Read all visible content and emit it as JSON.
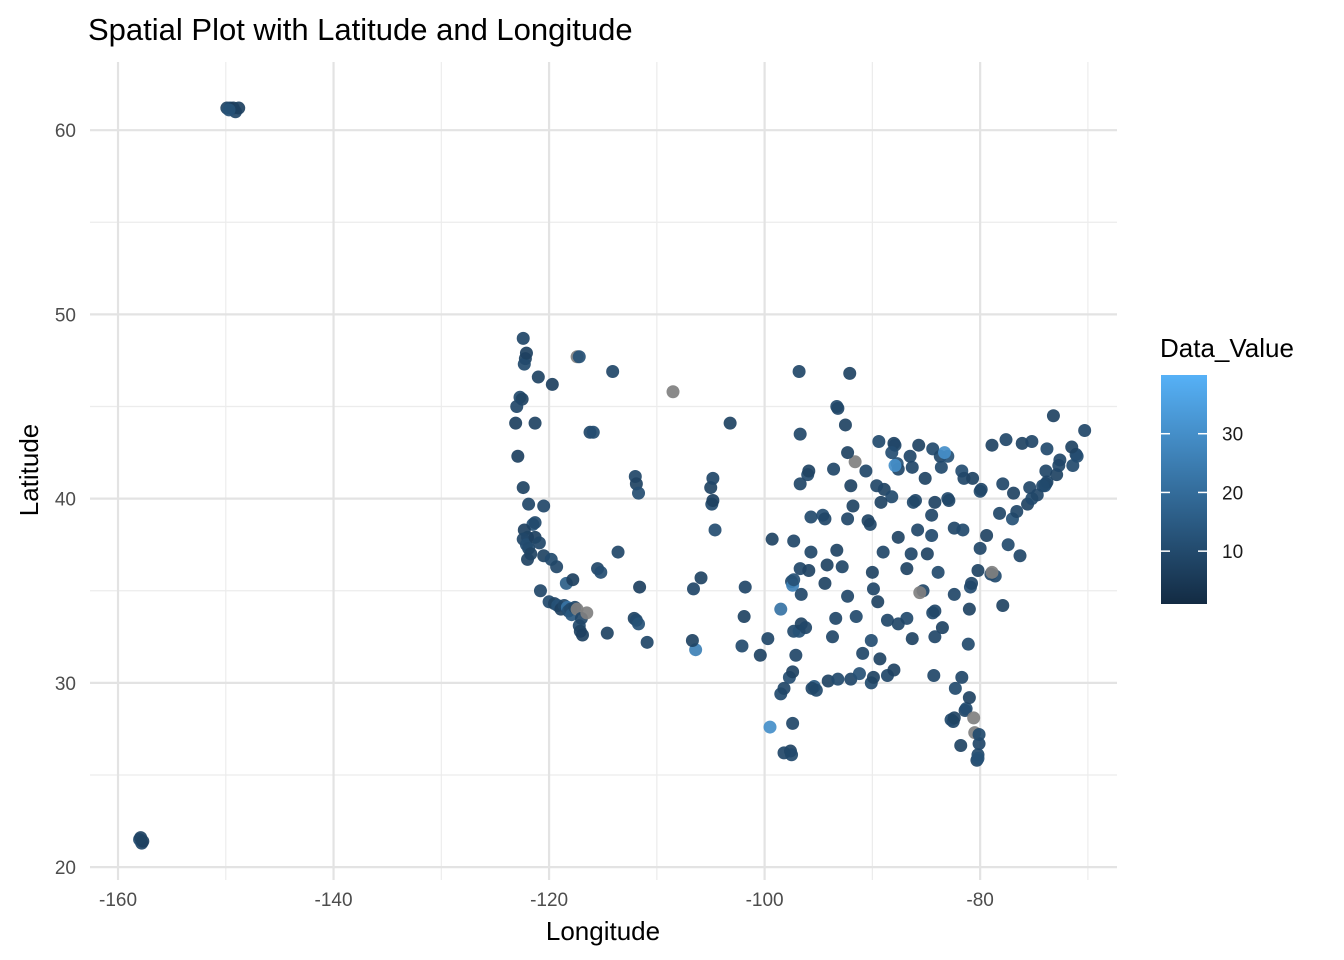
{
  "chart_data": {
    "type": "scatter",
    "title": "Spatial Plot with Latitude and Longitude",
    "xlabel": "Longitude",
    "ylabel": "Latitude",
    "xlim": [
      -162.6,
      -67.3
    ],
    "ylim": [
      19.3,
      63.7
    ],
    "x_ticks": [
      -160,
      -140,
      -120,
      -100,
      -80
    ],
    "y_ticks": [
      20,
      30,
      40,
      50,
      60
    ],
    "x_tick_labels": [
      "-160",
      "-140",
      "-120",
      "-100",
      "-80"
    ],
    "y_tick_labels": [
      "20",
      "30",
      "40",
      "50",
      "60"
    ],
    "grid": true,
    "legend": {
      "title": "Data_Value",
      "position": "right",
      "range": [
        1,
        40
      ],
      "ticks": [
        10,
        20,
        30
      ],
      "tick_labels": [
        "10",
        "20",
        "30"
      ],
      "color_low": "#132B43",
      "color_high": "#56B1F7"
    },
    "na_color": "#808080",
    "points": [
      [
        -149.9,
        61.2,
        8
      ],
      [
        -149.6,
        61.2,
        10
      ],
      [
        -149.3,
        61.2,
        6
      ],
      [
        -149.1,
        61.0,
        9
      ],
      [
        -148.8,
        61.2,
        7
      ],
      [
        -149.7,
        61.1,
        12
      ],
      [
        -157.8,
        21.3,
        9
      ],
      [
        -158.0,
        21.5,
        11
      ],
      [
        -157.7,
        21.4,
        7
      ],
      [
        -157.9,
        21.6,
        8
      ],
      [
        -122.4,
        48.7,
        9
      ],
      [
        -122.2,
        47.6,
        8
      ],
      [
        -122.3,
        47.3,
        10
      ],
      [
        -122.1,
        47.9,
        7
      ],
      [
        -117.4,
        47.7,
        null
      ],
      [
        -117.2,
        47.7,
        12
      ],
      [
        -121.0,
        46.6,
        8
      ],
      [
        -119.7,
        46.2,
        7
      ],
      [
        -114.1,
        46.9,
        9
      ],
      [
        -108.5,
        45.8,
        null
      ],
      [
        -122.7,
        45.5,
        10
      ],
      [
        -122.5,
        45.4,
        8
      ],
      [
        -123.0,
        45.0,
        9
      ],
      [
        -123.1,
        44.1,
        7
      ],
      [
        -121.3,
        44.1,
        8
      ],
      [
        -116.2,
        43.6,
        9
      ],
      [
        -115.9,
        43.6,
        11
      ],
      [
        -103.2,
        44.1,
        8
      ],
      [
        -122.9,
        42.3,
        7
      ],
      [
        -122.4,
        40.6,
        8
      ],
      [
        -121.9,
        39.7,
        9
      ],
      [
        -121.5,
        38.6,
        12
      ],
      [
        -121.3,
        38.7,
        10
      ],
      [
        -120.5,
        39.6,
        9
      ],
      [
        -122.3,
        38.3,
        7
      ],
      [
        -122.0,
        37.9,
        8
      ],
      [
        -122.4,
        37.8,
        9
      ],
      [
        -122.1,
        37.5,
        11
      ],
      [
        -121.9,
        37.3,
        10
      ],
      [
        -121.7,
        37.0,
        8
      ],
      [
        -121.3,
        37.9,
        7
      ],
      [
        -120.9,
        37.6,
        9
      ],
      [
        -120.5,
        36.9,
        8
      ],
      [
        -119.8,
        36.7,
        10
      ],
      [
        -119.3,
        36.3,
        9
      ],
      [
        -122.0,
        36.7,
        8
      ],
      [
        -120.8,
        35.0,
        9
      ],
      [
        -120.0,
        34.4,
        10
      ],
      [
        -119.5,
        34.3,
        8
      ],
      [
        -119.2,
        34.2,
        12
      ],
      [
        -118.9,
        34.0,
        7
      ],
      [
        -118.6,
        34.2,
        9
      ],
      [
        -118.3,
        34.1,
        22
      ],
      [
        -118.2,
        33.9,
        11
      ],
      [
        -118.0,
        34.0,
        10
      ],
      [
        -117.9,
        33.7,
        14
      ],
      [
        -117.6,
        34.1,
        9
      ],
      [
        -117.4,
        34.0,
        null
      ],
      [
        -117.2,
        33.1,
        10
      ],
      [
        -117.1,
        32.8,
        8
      ],
      [
        -117.0,
        33.5,
        9
      ],
      [
        -116.9,
        32.6,
        7
      ],
      [
        -118.4,
        35.4,
        16
      ],
      [
        -117.8,
        35.6,
        7
      ],
      [
        -116.5,
        33.8,
        null
      ],
      [
        -115.5,
        36.2,
        9
      ],
      [
        -115.2,
        36.0,
        11
      ],
      [
        -114.6,
        32.7,
        8
      ],
      [
        -113.6,
        37.1,
        9
      ],
      [
        -112.1,
        33.5,
        8
      ],
      [
        -111.9,
        33.4,
        10
      ],
      [
        -111.7,
        33.2,
        12
      ],
      [
        -111.6,
        35.2,
        7
      ],
      [
        -110.9,
        32.2,
        9
      ],
      [
        -112.0,
        41.2,
        9
      ],
      [
        -111.9,
        40.8,
        8
      ],
      [
        -111.7,
        40.3,
        11
      ],
      [
        -106.6,
        35.1,
        9
      ],
      [
        -106.4,
        31.8,
        26
      ],
      [
        -106.7,
        32.3,
        8
      ],
      [
        -104.9,
        39.7,
        10
      ],
      [
        -104.8,
        39.9,
        7
      ],
      [
        -105.0,
        40.6,
        8
      ],
      [
        -104.8,
        41.1,
        9
      ],
      [
        -104.6,
        38.3,
        11
      ],
      [
        -105.9,
        35.7,
        8
      ],
      [
        -97.5,
        35.5,
        10
      ],
      [
        -97.4,
        35.3,
        26
      ],
      [
        -97.3,
        35.6,
        12
      ],
      [
        -96.7,
        36.2,
        9
      ],
      [
        -95.9,
        36.1,
        8
      ],
      [
        -101.8,
        35.2,
        9
      ],
      [
        -101.9,
        33.6,
        8
      ],
      [
        -102.1,
        32.0,
        10
      ],
      [
        -99.7,
        32.4,
        9
      ],
      [
        -100.4,
        31.5,
        8
      ],
      [
        -98.5,
        29.4,
        10
      ],
      [
        -98.2,
        29.7,
        9
      ],
      [
        -97.7,
        30.3,
        11
      ],
      [
        -97.4,
        30.6,
        8
      ],
      [
        -97.1,
        31.5,
        9
      ],
      [
        -97.3,
        32.8,
        10
      ],
      [
        -96.8,
        32.8,
        12
      ],
      [
        -96.6,
        33.2,
        8
      ],
      [
        -96.2,
        33.0,
        9
      ],
      [
        -95.4,
        29.8,
        14
      ],
      [
        -95.2,
        29.6,
        10
      ],
      [
        -95.6,
        29.7,
        9
      ],
      [
        -94.1,
        30.1,
        8
      ],
      [
        -93.7,
        32.5,
        9
      ],
      [
        -93.2,
        30.2,
        10
      ],
      [
        -92.0,
        30.2,
        9
      ],
      [
        -91.2,
        30.5,
        12
      ],
      [
        -90.1,
        30.0,
        10
      ],
      [
        -89.9,
        30.3,
        8
      ],
      [
        -88.6,
        30.4,
        9
      ],
      [
        -88.0,
        30.7,
        8
      ],
      [
        -86.8,
        33.5,
        10
      ],
      [
        -87.6,
        33.2,
        9
      ],
      [
        -86.3,
        32.4,
        8
      ],
      [
        -99.5,
        27.6,
        30
      ],
      [
        -97.4,
        27.8,
        9
      ],
      [
        -97.6,
        26.3,
        8
      ],
      [
        -97.5,
        26.1,
        10
      ],
      [
        -98.2,
        26.2,
        9
      ],
      [
        -96.8,
        46.9,
        9
      ],
      [
        -92.1,
        46.8,
        8
      ],
      [
        -93.3,
        45.0,
        10
      ],
      [
        -93.2,
        44.9,
        9
      ],
      [
        -92.5,
        44.0,
        8
      ],
      [
        -96.7,
        43.5,
        9
      ],
      [
        -96.0,
        41.3,
        10
      ],
      [
        -96.7,
        40.8,
        9
      ],
      [
        -95.9,
        41.5,
        8
      ],
      [
        -93.6,
        41.6,
        9
      ],
      [
        -91.6,
        42.0,
        null
      ],
      [
        -92.3,
        42.5,
        8
      ],
      [
        -90.6,
        41.5,
        9
      ],
      [
        -89.4,
        43.1,
        10
      ],
      [
        -88.0,
        43.0,
        8
      ],
      [
        -87.9,
        42.9,
        9
      ],
      [
        -88.2,
        42.5,
        11
      ],
      [
        -87.7,
        41.9,
        12
      ],
      [
        -87.6,
        41.6,
        9
      ],
      [
        -87.9,
        41.8,
        30
      ],
      [
        -88.9,
        40.5,
        8
      ],
      [
        -89.6,
        40.7,
        9
      ],
      [
        -88.2,
        40.1,
        10
      ],
      [
        -89.2,
        39.8,
        8
      ],
      [
        -90.2,
        38.6,
        9
      ],
      [
        -90.4,
        38.8,
        8
      ],
      [
        -94.6,
        39.1,
        11
      ],
      [
        -94.4,
        38.9,
        9
      ],
      [
        -95.7,
        39.0,
        10
      ],
      [
        -97.3,
        37.7,
        9
      ],
      [
        -93.3,
        37.2,
        8
      ],
      [
        -92.3,
        38.9,
        9
      ],
      [
        -91.8,
        39.6,
        8
      ],
      [
        -86.2,
        39.8,
        10
      ],
      [
        -86.0,
        39.9,
        9
      ],
      [
        -85.1,
        41.1,
        8
      ],
      [
        -86.3,
        41.7,
        9
      ],
      [
        -84.4,
        42.7,
        10
      ],
      [
        -83.7,
        42.3,
        9
      ],
      [
        -83.0,
        42.3,
        12
      ],
      [
        -83.3,
        42.5,
        30
      ],
      [
        -85.7,
        42.9,
        8
      ],
      [
        -86.5,
        42.3,
        9
      ],
      [
        -83.6,
        41.7,
        10
      ],
      [
        -81.7,
        41.5,
        11
      ],
      [
        -81.5,
        41.1,
        9
      ],
      [
        -80.7,
        41.1,
        8
      ],
      [
        -83.0,
        40.0,
        10
      ],
      [
        -82.9,
        39.9,
        9
      ],
      [
        -84.2,
        39.8,
        8
      ],
      [
        -84.5,
        39.1,
        9
      ],
      [
        -84.5,
        38.0,
        10
      ],
      [
        -85.8,
        38.3,
        9
      ],
      [
        -86.8,
        36.2,
        8
      ],
      [
        -85.3,
        35.0,
        9
      ],
      [
        -83.9,
        36.0,
        10
      ],
      [
        -89.9,
        35.1,
        9
      ],
      [
        -90.1,
        32.3,
        11
      ],
      [
        -92.3,
        34.7,
        9
      ],
      [
        -94.4,
        35.4,
        8
      ],
      [
        -85.6,
        34.9,
        null
      ],
      [
        -84.4,
        33.8,
        10
      ],
      [
        -84.2,
        33.9,
        9
      ],
      [
        -83.5,
        33.0,
        8
      ],
      [
        -84.2,
        32.5,
        9
      ],
      [
        -81.1,
        32.1,
        10
      ],
      [
        -82.4,
        34.8,
        9
      ],
      [
        -81.0,
        34.0,
        8
      ],
      [
        -80.9,
        35.2,
        11
      ],
      [
        -80.8,
        35.4,
        9
      ],
      [
        -80.2,
        36.1,
        8
      ],
      [
        -79.0,
        35.9,
        9
      ],
      [
        -78.6,
        35.8,
        10
      ],
      [
        -78.9,
        36.0,
        null
      ],
      [
        -77.9,
        34.2,
        8
      ],
      [
        -76.3,
        36.9,
        9
      ],
      [
        -77.4,
        37.5,
        10
      ],
      [
        -77.0,
        38.9,
        12
      ],
      [
        -76.6,
        39.3,
        9
      ],
      [
        -75.6,
        39.7,
        8
      ],
      [
        -75.2,
        40.0,
        10
      ],
      [
        -75.4,
        40.6,
        9
      ],
      [
        -76.9,
        40.3,
        8
      ],
      [
        -77.9,
        40.8,
        9
      ],
      [
        -80.0,
        40.4,
        10
      ],
      [
        -79.9,
        40.5,
        9
      ],
      [
        -78.9,
        42.9,
        8
      ],
      [
        -77.6,
        43.2,
        9
      ],
      [
        -76.1,
        43.0,
        8
      ],
      [
        -75.2,
        43.1,
        9
      ],
      [
        -73.8,
        42.7,
        10
      ],
      [
        -73.9,
        41.5,
        9
      ],
      [
        -74.0,
        40.7,
        12
      ],
      [
        -73.9,
        40.8,
        11
      ],
      [
        -73.8,
        40.9,
        9
      ],
      [
        -74.2,
        40.7,
        10
      ],
      [
        -74.7,
        40.2,
        9
      ],
      [
        -72.9,
        41.3,
        8
      ],
      [
        -72.7,
        41.8,
        9
      ],
      [
        -71.4,
        41.8,
        10
      ],
      [
        -71.1,
        42.4,
        9
      ],
      [
        -71.0,
        42.3,
        11
      ],
      [
        -71.5,
        42.8,
        8
      ],
      [
        -70.3,
        43.7,
        9
      ],
      [
        -73.2,
        44.5,
        8
      ],
      [
        -72.6,
        42.1,
        9
      ],
      [
        -82.5,
        27.9,
        9
      ],
      [
        -82.7,
        28.0,
        10
      ],
      [
        -82.4,
        28.1,
        8
      ],
      [
        -81.4,
        28.5,
        9
      ],
      [
        -81.3,
        28.6,
        11
      ],
      [
        -80.1,
        26.7,
        9
      ],
      [
        -80.2,
        26.1,
        10
      ],
      [
        -80.3,
        25.8,
        9
      ],
      [
        -80.2,
        25.9,
        12
      ],
      [
        -81.8,
        26.6,
        8
      ],
      [
        -81.7,
        30.3,
        9
      ],
      [
        -82.3,
        29.7,
        10
      ],
      [
        -84.3,
        30.4,
        9
      ],
      [
        -81.0,
        29.2,
        8
      ],
      [
        -80.6,
        28.1,
        null
      ],
      [
        -80.5,
        27.3,
        null
      ],
      [
        -80.1,
        27.2,
        10
      ],
      [
        -92.0,
        40.7,
        8
      ],
      [
        -92.8,
        36.3,
        9
      ],
      [
        -90.0,
        36.0,
        8
      ],
      [
        -89.0,
        37.1,
        9
      ],
      [
        -87.6,
        37.9,
        8
      ],
      [
        -86.4,
        37.0,
        9
      ],
      [
        -84.9,
        37.0,
        8
      ],
      [
        -82.4,
        38.4,
        9
      ],
      [
        -81.6,
        38.3,
        10
      ],
      [
        -80.0,
        37.3,
        9
      ],
      [
        -79.4,
        38.0,
        8
      ],
      [
        -78.2,
        39.2,
        9
      ],
      [
        -98.5,
        34.0,
        22
      ],
      [
        -96.6,
        34.8,
        9
      ],
      [
        -99.3,
        37.8,
        8
      ],
      [
        -95.7,
        37.1,
        9
      ],
      [
        -94.2,
        36.4,
        8
      ],
      [
        -93.4,
        33.5,
        9
      ],
      [
        -91.5,
        33.6,
        10
      ],
      [
        -90.9,
        31.6,
        9
      ],
      [
        -89.3,
        31.3,
        8
      ],
      [
        -88.6,
        33.4,
        9
      ],
      [
        -89.5,
        34.4,
        8
      ]
    ]
  }
}
